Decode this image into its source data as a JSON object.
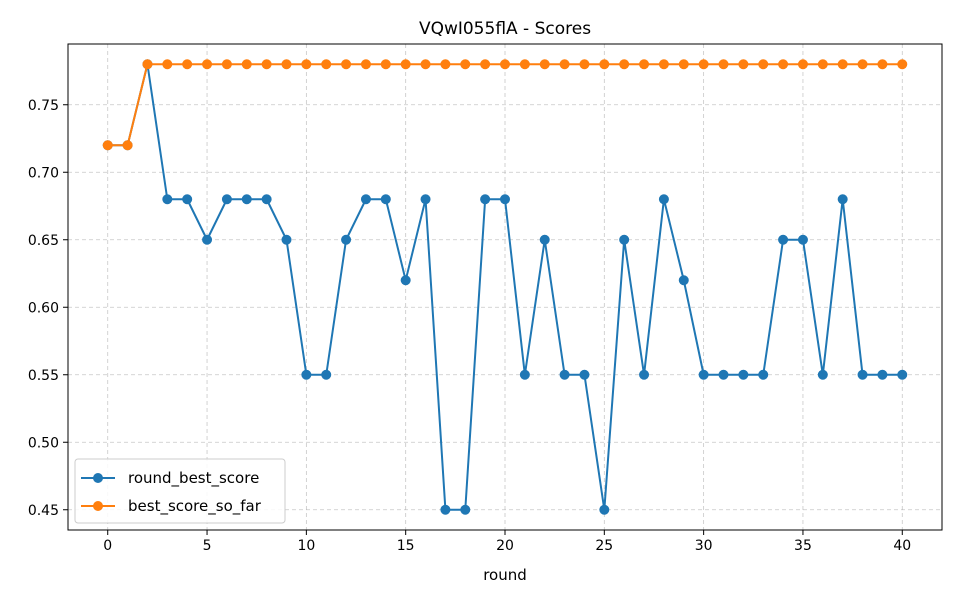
{
  "chart_data": {
    "type": "line",
    "title": "VQwI055flA - Scores",
    "xlabel": "round",
    "ylabel": "",
    "xlim": [
      -2,
      42
    ],
    "ylim": [
      0.435,
      0.795
    ],
    "xticks": [
      0,
      5,
      10,
      15,
      20,
      25,
      30,
      35,
      40
    ],
    "yticks": [
      0.45,
      0.5,
      0.55,
      0.6,
      0.65,
      0.7,
      0.75
    ],
    "ytick_labels": [
      "0.45",
      "0.50",
      "0.55",
      "0.60",
      "0.65",
      "0.70",
      "0.75"
    ],
    "grid": true,
    "legend_position": "lower-left",
    "x": [
      0,
      1,
      2,
      3,
      4,
      5,
      6,
      7,
      8,
      9,
      10,
      11,
      12,
      13,
      14,
      15,
      16,
      17,
      18,
      19,
      20,
      21,
      22,
      23,
      24,
      25,
      26,
      27,
      28,
      29,
      30,
      31,
      32,
      33,
      34,
      35,
      36,
      37,
      38,
      39,
      40
    ],
    "series": [
      {
        "name": "round_best_score",
        "color": "#1f77b4",
        "values": [
          0.72,
          0.72,
          0.78,
          0.68,
          0.68,
          0.65,
          0.68,
          0.68,
          0.68,
          0.65,
          0.55,
          0.55,
          0.65,
          0.68,
          0.68,
          0.62,
          0.68,
          0.45,
          0.45,
          0.68,
          0.68,
          0.55,
          0.65,
          0.55,
          0.55,
          0.45,
          0.65,
          0.55,
          0.68,
          0.62,
          0.55,
          0.55,
          0.55,
          0.55,
          0.65,
          0.65,
          0.55,
          0.68,
          0.55,
          0.55,
          0.55
        ]
      },
      {
        "name": "best_score_so_far",
        "color": "#ff7f0e",
        "values": [
          0.72,
          0.72,
          0.78,
          0.78,
          0.78,
          0.78,
          0.78,
          0.78,
          0.78,
          0.78,
          0.78,
          0.78,
          0.78,
          0.78,
          0.78,
          0.78,
          0.78,
          0.78,
          0.78,
          0.78,
          0.78,
          0.78,
          0.78,
          0.78,
          0.78,
          0.78,
          0.78,
          0.78,
          0.78,
          0.78,
          0.78,
          0.78,
          0.78,
          0.78,
          0.78,
          0.78,
          0.78,
          0.78,
          0.78,
          0.78,
          0.78
        ]
      }
    ]
  }
}
